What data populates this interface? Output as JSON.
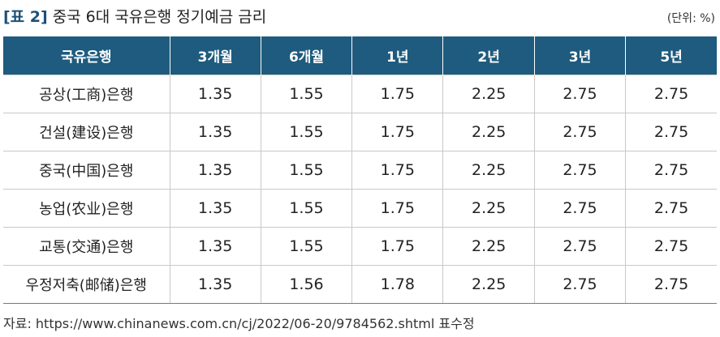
{
  "header": {
    "label": "[표 2]",
    "title": "중국 6대 국유은행 정기예금 금리",
    "unit": "(단위: %)"
  },
  "table": {
    "columns": [
      "국유은행",
      "3개월",
      "6개월",
      "1년",
      "2년",
      "3년",
      "5년"
    ],
    "rows": [
      [
        "공상(工商)은행",
        1.35,
        1.55,
        1.75,
        2.25,
        2.75,
        2.75
      ],
      [
        "건설(建设)은행",
        1.35,
        1.55,
        1.75,
        2.25,
        2.75,
        2.75
      ],
      [
        "중국(中国)은행",
        1.35,
        1.55,
        1.75,
        2.25,
        2.75,
        2.75
      ],
      [
        "농업(农业)은행",
        1.35,
        1.55,
        1.75,
        2.25,
        2.75,
        2.75
      ],
      [
        "교통(交通)은행",
        1.35,
        1.55,
        1.75,
        2.25,
        2.75,
        2.75
      ],
      [
        "우정저축(邮储)은행",
        1.35,
        1.56,
        1.78,
        2.25,
        2.75,
        2.75
      ]
    ]
  },
  "source": "자료: https://www.chinanews.com.cn/cj/2022/06-20/9784562.shtml 표수정"
}
